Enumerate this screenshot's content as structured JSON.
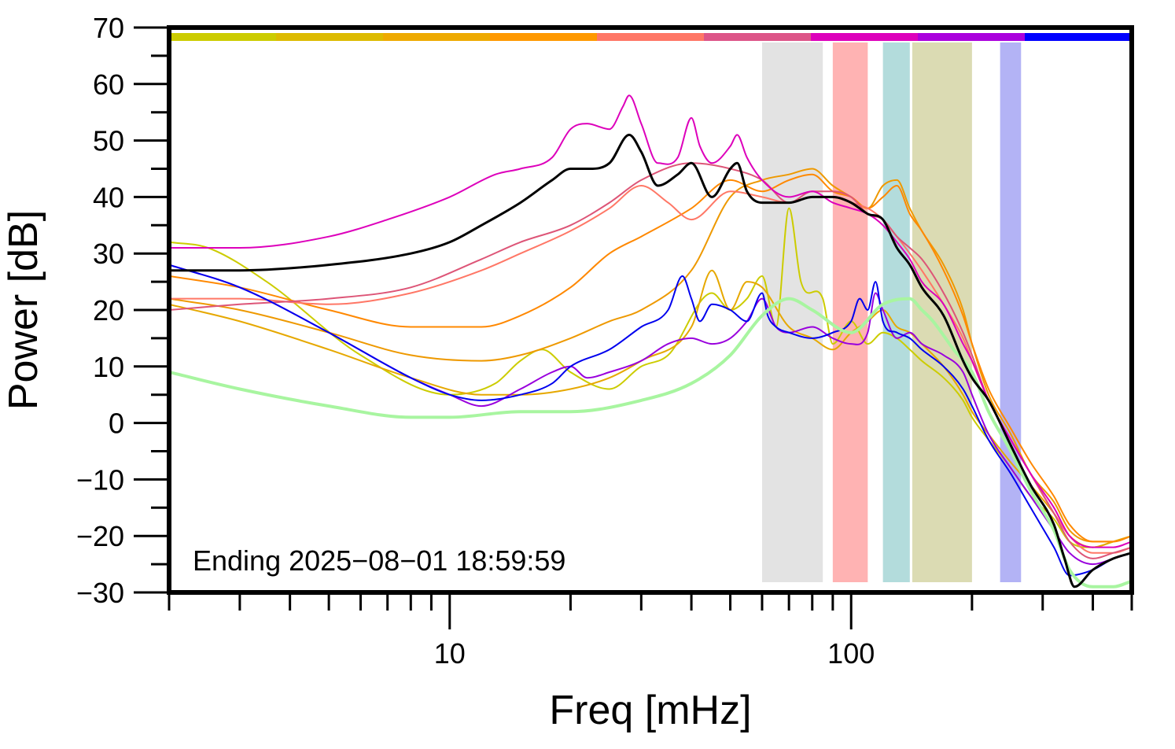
{
  "chart_data": {
    "type": "line",
    "xlabel": "Freq [mHz]",
    "ylabel": "Power [dB]",
    "xscale": "log",
    "xlim": [
      2,
      500
    ],
    "ylim": [
      -30,
      70
    ],
    "x_ticks": [
      10,
      100
    ],
    "x_tick_labels": [
      "10",
      "100"
    ],
    "y_ticks": [
      -30,
      -20,
      -10,
      0,
      10,
      20,
      30,
      40,
      50,
      60,
      70
    ],
    "y_tick_labels": [
      "−30",
      "−20",
      "−10",
      "0",
      "10",
      "20",
      "30",
      "40",
      "50",
      "60",
      "70"
    ],
    "annotation": "Ending 2025−08−01 18:59:59",
    "grid": false,
    "time_color_bar": [
      "#cccc00",
      "#ddbb00",
      "#eeaa00",
      "#ff9900",
      "#ff7766",
      "#dd5588",
      "#dd00bb",
      "#aa00dd",
      "#0000ff"
    ],
    "bands": [
      {
        "x": [
          60,
          85
        ],
        "color": "#e3e3e3"
      },
      {
        "x": [
          90,
          110
        ],
        "color": "#ffb3b3"
      },
      {
        "x": [
          120,
          140
        ],
        "color": "#b3dcdc"
      },
      {
        "x": [
          142,
          200
        ],
        "color": "#dbdbb3"
      },
      {
        "x": [
          235,
          265
        ],
        "color": "#b3b3f5"
      }
    ],
    "series": [
      {
        "color": "#cccc00",
        "width": 2,
        "x": [
          2,
          2.5,
          3.5,
          6,
          10,
          13,
          15,
          17,
          20,
          25,
          30,
          35,
          45,
          50,
          55,
          60,
          65,
          70,
          75,
          85,
          90,
          100,
          110,
          120,
          130,
          140,
          150,
          170,
          190,
          200,
          220,
          250,
          280,
          320,
          350,
          400,
          450,
          500
        ],
        "y": [
          32,
          31,
          25,
          12,
          5,
          7,
          11,
          13,
          9,
          6,
          10,
          12,
          23,
          20,
          22,
          26,
          17,
          38,
          25,
          22,
          14,
          18,
          14,
          16,
          15,
          13,
          11,
          8,
          4,
          1,
          -3,
          -8,
          -13,
          -17,
          -21,
          -22,
          -21,
          -20
        ]
      },
      {
        "color": "#e6a800",
        "width": 2,
        "x": [
          2,
          3,
          5,
          8,
          12,
          15,
          20,
          25,
          30,
          40,
          45,
          50,
          55,
          60,
          70,
          80,
          90,
          100,
          110,
          120,
          130,
          140,
          150,
          170,
          190,
          200,
          220,
          250,
          280,
          320,
          350,
          400,
          450,
          500
        ],
        "y": [
          21,
          18,
          13,
          8,
          5,
          5,
          6,
          8,
          11,
          17,
          27,
          20,
          25,
          24,
          17,
          15,
          13,
          16,
          18,
          20,
          17,
          16,
          14,
          10,
          5,
          2,
          -2,
          -7,
          -11,
          -16,
          -20,
          -22,
          -21,
          -20
        ]
      },
      {
        "color": "#ee9900",
        "width": 2,
        "x": [
          2,
          3,
          5,
          8,
          12,
          15,
          20,
          25,
          30,
          40,
          50,
          60,
          70,
          80,
          90,
          100,
          110,
          120,
          130,
          140,
          150,
          170,
          190,
          200,
          220,
          250,
          280,
          320,
          350,
          400,
          450,
          500
        ],
        "y": [
          22,
          20,
          16,
          12,
          11,
          12,
          15,
          18,
          20,
          27,
          40,
          43,
          44,
          45,
          42,
          40,
          38,
          42,
          43,
          38,
          34,
          28,
          20,
          14,
          5,
          -2,
          -9,
          -14,
          -19,
          -21,
          -21,
          -20
        ]
      },
      {
        "color": "#ff8800",
        "width": 2,
        "x": [
          2,
          3,
          5,
          8,
          12,
          15,
          20,
          25,
          30,
          40,
          50,
          60,
          70,
          80,
          90,
          100,
          110,
          120,
          130,
          140,
          150,
          170,
          190,
          200,
          220,
          250,
          280,
          320,
          350,
          400,
          450,
          500
        ],
        "y": [
          26,
          24,
          20,
          17,
          17,
          19,
          24,
          30,
          33,
          38,
          43,
          41,
          43,
          44,
          41,
          40,
          38,
          40,
          42,
          37,
          34,
          27,
          19,
          14,
          6,
          -1,
          -7,
          -13,
          -18,
          -21,
          -21,
          -20
        ]
      },
      {
        "color": "#ff7766",
        "width": 2,
        "x": [
          2,
          3,
          5,
          8,
          12,
          15,
          20,
          25,
          30,
          35,
          40,
          50,
          60,
          70,
          80,
          90,
          100,
          110,
          120,
          130,
          140,
          150,
          170,
          190,
          200,
          220,
          250,
          280,
          320,
          350,
          400,
          450,
          500
        ],
        "y": [
          22,
          22,
          21,
          23,
          27,
          30,
          34,
          38,
          42,
          39,
          36,
          41,
          40,
          39,
          40,
          40,
          39,
          38,
          36,
          33,
          30,
          27,
          21,
          15,
          11,
          4,
          -3,
          -9,
          -16,
          -20,
          -23,
          -23,
          -22
        ]
      },
      {
        "color": "#dd5577",
        "width": 2,
        "x": [
          2,
          3,
          5,
          8,
          12,
          15,
          20,
          25,
          30,
          40,
          50,
          60,
          70,
          80,
          90,
          100,
          110,
          120,
          130,
          140,
          150,
          170,
          190,
          200,
          220,
          250,
          280,
          320,
          350,
          400,
          450,
          500
        ],
        "y": [
          20,
          21,
          22,
          24,
          29,
          32,
          35,
          39,
          43,
          46,
          45,
          43,
          39,
          41,
          41,
          40,
          37,
          36,
          33,
          31,
          29,
          23,
          16,
          12,
          4,
          -3,
          -9,
          -16,
          -21,
          -24,
          -23,
          -22
        ]
      },
      {
        "color": "#dd00bb",
        "width": 2,
        "x": [
          2,
          3,
          5,
          7,
          10,
          13,
          15,
          18,
          20,
          22,
          25,
          27,
          28,
          30,
          33,
          37,
          40,
          42,
          45,
          50,
          52,
          55,
          60,
          70,
          80,
          90,
          100,
          110,
          120,
          130,
          140,
          150,
          170,
          190,
          200,
          220,
          250,
          280,
          320,
          350,
          400,
          450,
          500
        ],
        "y": [
          31,
          31,
          33,
          36,
          40,
          44,
          45,
          47,
          52,
          53,
          52,
          56,
          58,
          53,
          46,
          47,
          54,
          49,
          46,
          49,
          51,
          47,
          43,
          40,
          41,
          39,
          38,
          37,
          35,
          32,
          29,
          25,
          21,
          14,
          11,
          4,
          -3,
          -9,
          -15,
          -20,
          -22,
          -22,
          -21
        ]
      },
      {
        "color": "#9900dd",
        "width": 2,
        "x": [
          2,
          3,
          5,
          8,
          10,
          12,
          15,
          18,
          20,
          22,
          25,
          30,
          35,
          40,
          45,
          50,
          55,
          60,
          65,
          70,
          80,
          90,
          100,
          110,
          115,
          120,
          130,
          140,
          150,
          170,
          190,
          200,
          220,
          250,
          280,
          320,
          350,
          400,
          450,
          500
        ],
        "y": [
          28,
          24,
          16,
          8,
          5,
          3,
          6,
          9,
          10,
          8,
          9,
          11,
          14,
          15,
          14,
          15,
          18,
          22,
          17,
          16,
          17,
          15,
          14,
          16,
          23,
          20,
          15,
          16,
          14,
          12,
          9,
          5,
          -2,
          -8,
          -13,
          -19,
          -23,
          -25,
          -24,
          -23
        ]
      },
      {
        "color": "#0000ee",
        "width": 2,
        "x": [
          2,
          3,
          5,
          8,
          10,
          12,
          15,
          18,
          20,
          25,
          30,
          35,
          38,
          40,
          42,
          45,
          50,
          55,
          60,
          62,
          65,
          70,
          80,
          90,
          100,
          105,
          110,
          115,
          120,
          130,
          140,
          150,
          170,
          190,
          200,
          220,
          250,
          280,
          320,
          350,
          400,
          450,
          500
        ],
        "y": [
          28,
          24,
          16,
          8,
          5,
          4,
          5,
          7,
          10,
          13,
          17,
          20,
          26,
          22,
          18,
          21,
          20,
          18,
          23,
          19,
          17,
          16,
          15,
          16,
          18,
          22,
          20,
          25,
          18,
          16,
          15,
          13,
          10,
          6,
          3,
          -3,
          -9,
          -15,
          -22,
          -27,
          -26,
          -24,
          -23
        ]
      },
      {
        "color": "#a8f5a0",
        "width": 4,
        "x": [
          2,
          3,
          5,
          8,
          10,
          15,
          20,
          30,
          40,
          50,
          60,
          70,
          80,
          100,
          120,
          140,
          150,
          160,
          180,
          200,
          220,
          250,
          280,
          320,
          350,
          400,
          450,
          500
        ],
        "y": [
          9,
          6,
          3,
          1,
          1,
          2,
          2,
          4,
          7,
          12,
          19,
          22,
          20,
          16,
          21,
          22,
          20,
          18,
          13,
          9,
          2,
          -5,
          -12,
          -19,
          -26,
          -29,
          -29,
          -28
        ]
      },
      {
        "color": "#000000",
        "width": 3,
        "x": [
          2,
          3,
          5,
          8,
          10,
          12,
          15,
          18,
          20,
          22,
          25,
          28,
          30,
          33,
          37,
          40,
          45,
          50,
          52,
          55,
          60,
          70,
          80,
          90,
          100,
          110,
          120,
          130,
          140,
          150,
          170,
          190,
          200,
          220,
          250,
          280,
          320,
          340,
          360,
          400,
          450,
          500
        ],
        "y": [
          27,
          27,
          28,
          30,
          32,
          35,
          39,
          43,
          45,
          45,
          46,
          51,
          48,
          42,
          44,
          46,
          40,
          45,
          46,
          41,
          39,
          39,
          40,
          40,
          39,
          37,
          36,
          31,
          28,
          24,
          19,
          11,
          8,
          4,
          -4,
          -11,
          -18,
          -24,
          -29,
          -26,
          -24,
          -23
        ]
      }
    ]
  }
}
